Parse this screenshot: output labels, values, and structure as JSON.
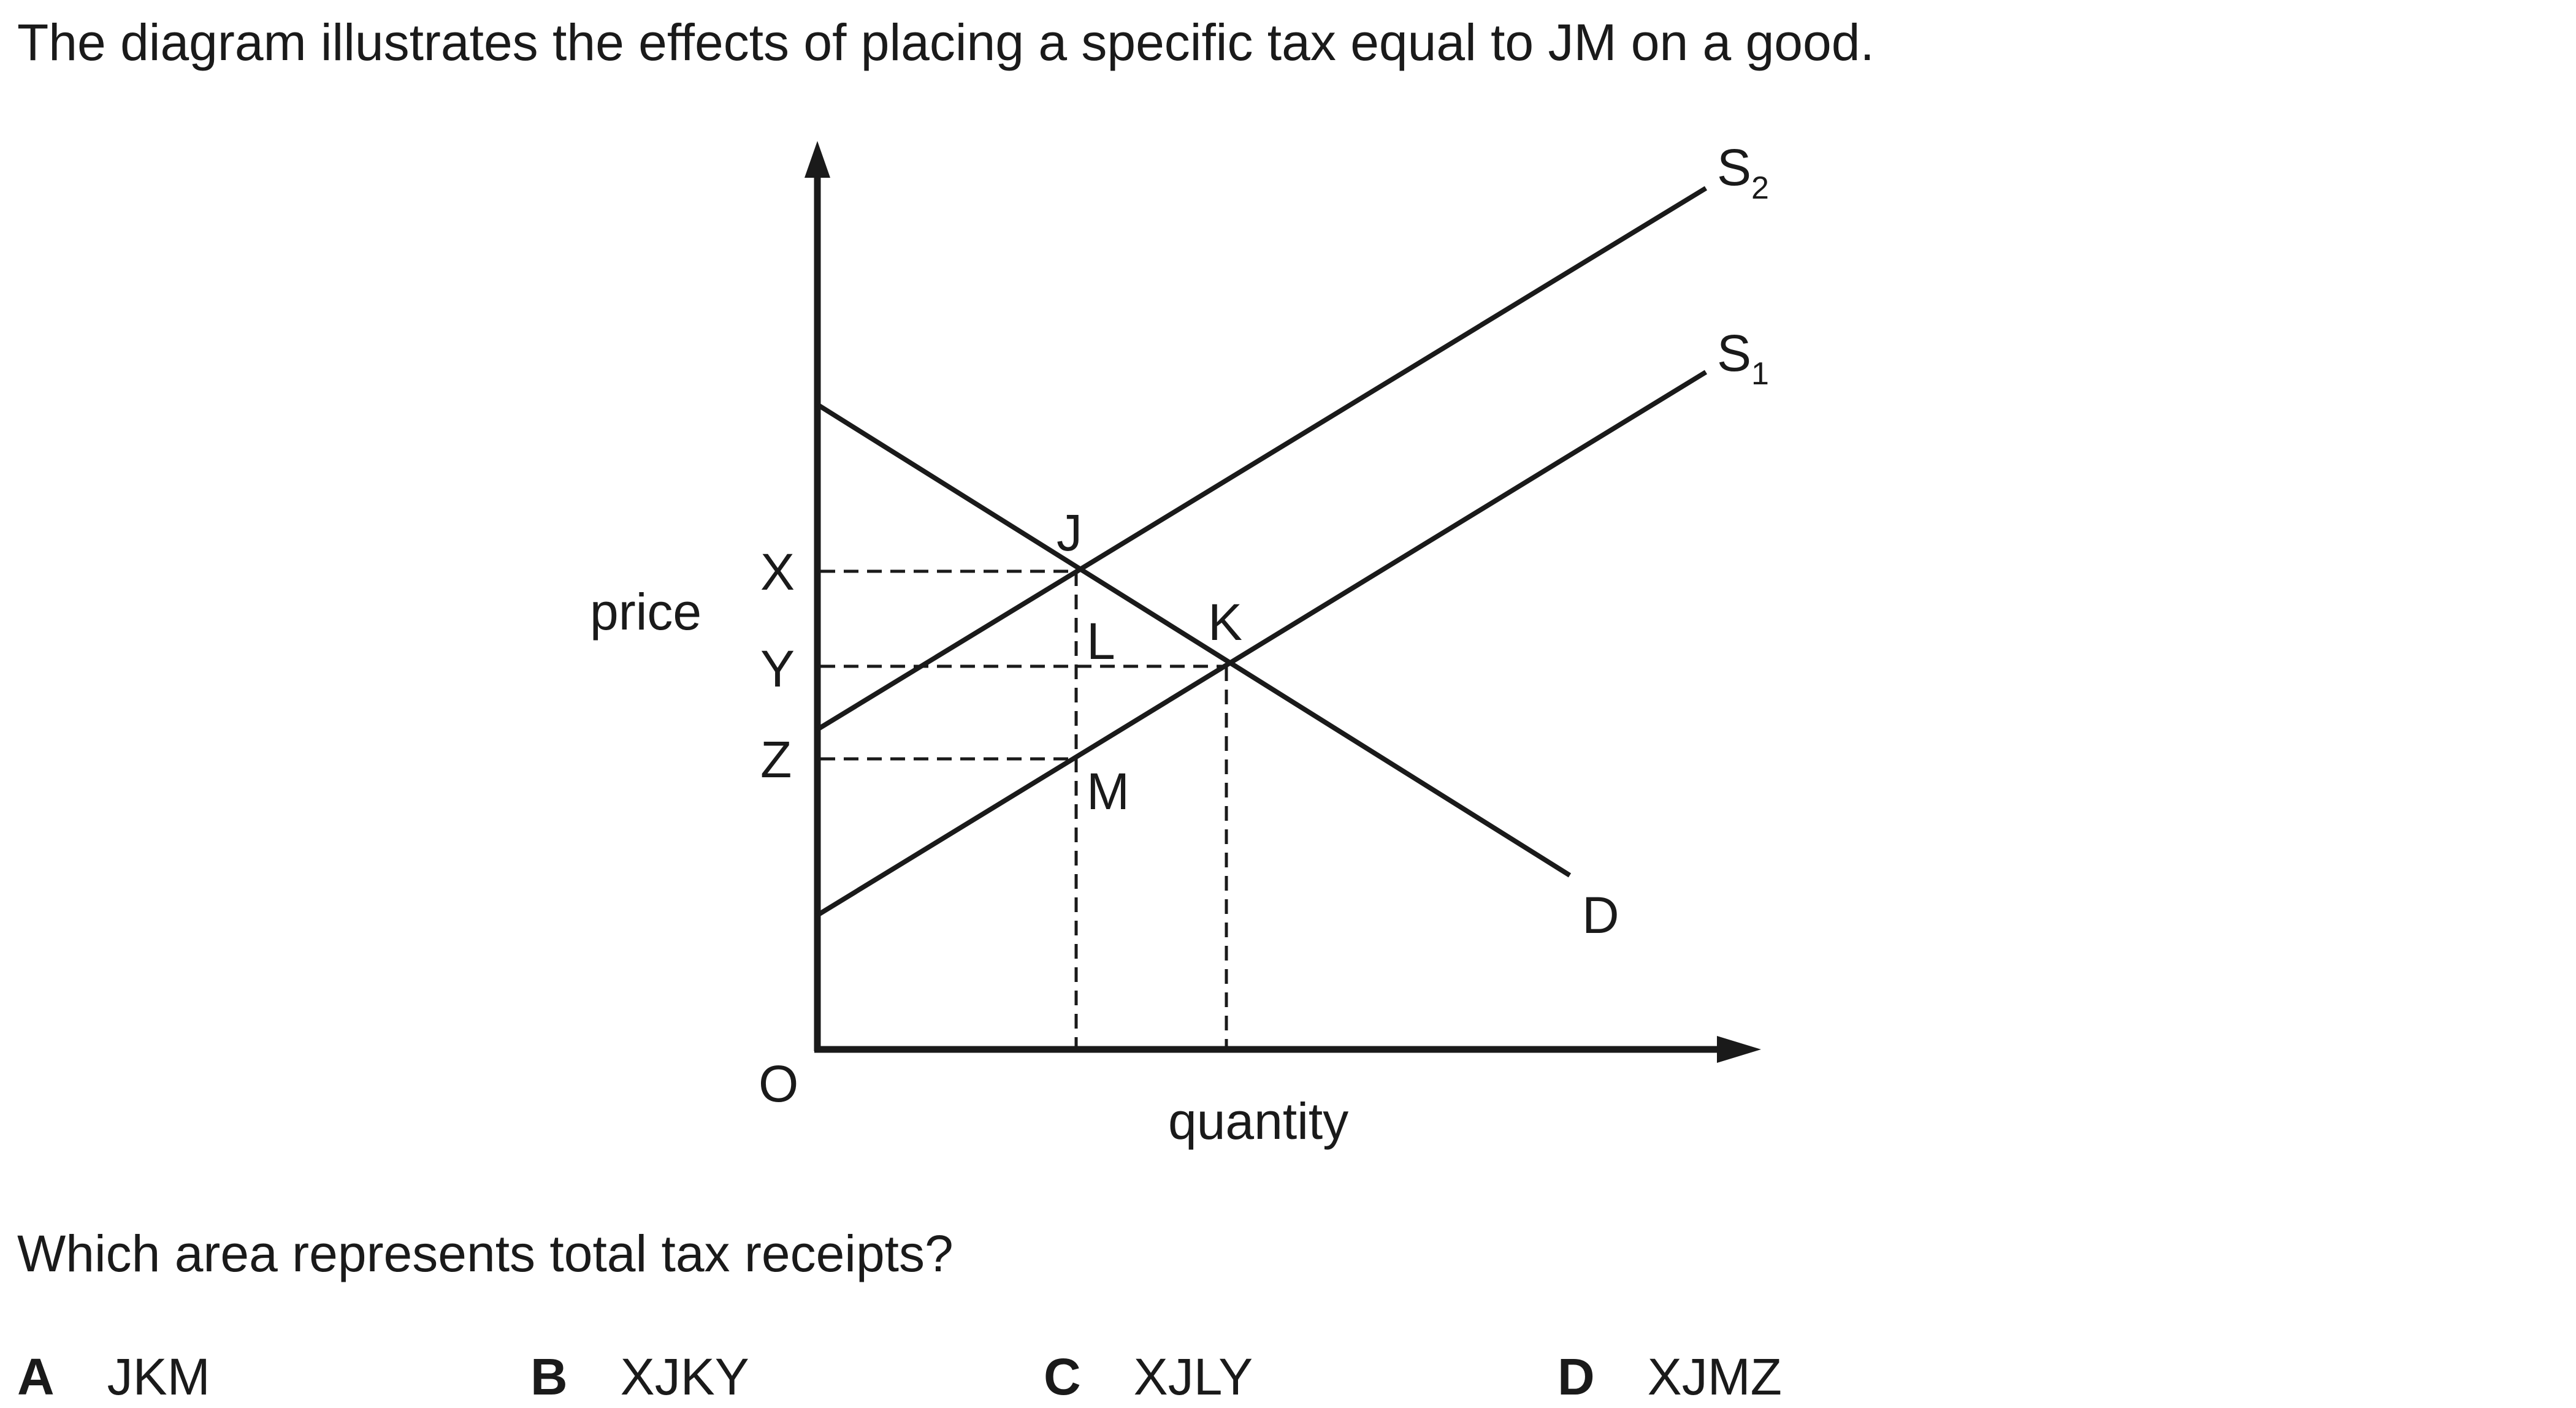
{
  "intro": "The diagram illustrates the effects of placing a specific tax equal to JM on a good.",
  "diagram": {
    "y_axis_label": "price",
    "x_axis_label": "quantity",
    "origin_label": "O",
    "price_labels": {
      "x": "X",
      "y": "Y",
      "z": "Z"
    },
    "point_labels": {
      "j": "J",
      "k": "K",
      "l": "L",
      "m": "M"
    },
    "curves": {
      "s2": {
        "main": "S",
        "sub": "2"
      },
      "s1": {
        "main": "S",
        "sub": "1"
      },
      "d": "D"
    }
  },
  "question": "Which area represents total tax receipts?",
  "options": [
    {
      "letter": "A",
      "text": "JKM"
    },
    {
      "letter": "B",
      "text": "XJKY"
    },
    {
      "letter": "C",
      "text": "XJLY"
    },
    {
      "letter": "D",
      "text": "XJMZ"
    }
  ]
}
